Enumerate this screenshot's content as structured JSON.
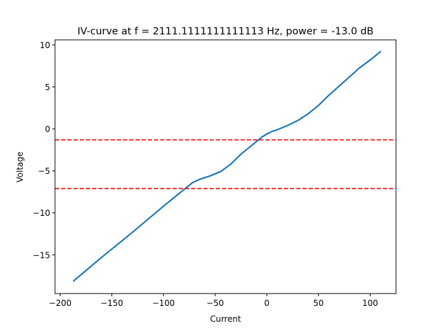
{
  "chart_data": {
    "type": "line",
    "title": "IV-curve at f = 2111.1111111111113 Hz, power = -13.0 dB",
    "xlabel": "Current",
    "ylabel": "Voltage",
    "xlim": [
      -205,
      125
    ],
    "ylim": [
      -19.6,
      10.6
    ],
    "xticks": [
      -200,
      -150,
      -100,
      -50,
      0,
      50,
      100
    ],
    "xtick_labels": [
      "−200",
      "−150",
      "−100",
      "−50",
      "0",
      "50",
      "100"
    ],
    "yticks": [
      10,
      5,
      0,
      -5,
      -10,
      -15
    ],
    "ytick_labels": [
      "10",
      "5",
      "0",
      "−5",
      "−10",
      "−15"
    ],
    "grid": false,
    "series": [
      {
        "color": "#1f77b4",
        "x": [
          -187,
          -160,
          -130,
          -100,
          -85,
          -78,
          -72,
          -65,
          -55,
          -45,
          -35,
          -25,
          -15,
          -5,
          0,
          5,
          10,
          20,
          30,
          40,
          50,
          60,
          70,
          80,
          90,
          100,
          110
        ],
        "y": [
          -18.1,
          -15.3,
          -12.3,
          -9.2,
          -7.7,
          -7.0,
          -6.4,
          -6.0,
          -5.6,
          -5.1,
          -4.2,
          -3.0,
          -2.0,
          -1.0,
          -0.6,
          -0.3,
          -0.1,
          0.4,
          1.0,
          1.8,
          2.8,
          4.0,
          5.1,
          6.2,
          7.3,
          8.2,
          9.2
        ]
      }
    ],
    "hlines": [
      {
        "y": -1.3,
        "color": "#ff0000",
        "style": "dashed"
      },
      {
        "y": -7.1,
        "color": "#ff0000",
        "style": "dashed"
      }
    ]
  }
}
